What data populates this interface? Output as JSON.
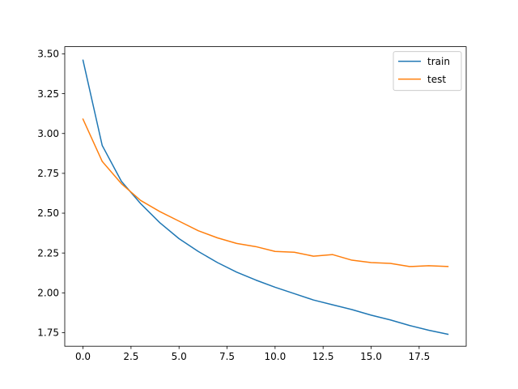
{
  "chart_data": {
    "type": "line",
    "title": "",
    "xlabel": "",
    "ylabel": "",
    "xlim": [
      -0.95,
      19.95
    ],
    "ylim": [
      1.665,
      3.545
    ],
    "xticks": [
      0.0,
      2.5,
      5.0,
      7.5,
      10.0,
      12.5,
      15.0,
      17.5
    ],
    "xtick_labels": [
      "0.0",
      "2.5",
      "5.0",
      "7.5",
      "10.0",
      "12.5",
      "15.0",
      "17.5"
    ],
    "yticks": [
      1.75,
      2.0,
      2.25,
      2.5,
      2.75,
      3.0,
      3.25,
      3.5
    ],
    "ytick_labels": [
      "1.75",
      "2.00",
      "2.25",
      "2.50",
      "2.75",
      "3.00",
      "3.25",
      "3.50"
    ],
    "grid": false,
    "legend_position": "upper right",
    "x": [
      0,
      1,
      2,
      3,
      4,
      5,
      6,
      7,
      8,
      9,
      10,
      11,
      12,
      13,
      14,
      15,
      16,
      17,
      18,
      19
    ],
    "series": [
      {
        "name": "train",
        "color": "#1f77b4",
        "values": [
          3.46,
          2.925,
          2.7,
          2.56,
          2.44,
          2.34,
          2.26,
          2.19,
          2.13,
          2.08,
          2.035,
          1.995,
          1.955,
          1.925,
          1.895,
          1.86,
          1.83,
          1.795,
          1.765,
          1.74
        ]
      },
      {
        "name": "test",
        "color": "#ff7f0e",
        "values": [
          3.09,
          2.825,
          2.685,
          2.58,
          2.51,
          2.45,
          2.39,
          2.345,
          2.31,
          2.29,
          2.26,
          2.255,
          2.23,
          2.24,
          2.205,
          2.19,
          2.185,
          2.165,
          2.17,
          2.165
        ]
      }
    ]
  }
}
